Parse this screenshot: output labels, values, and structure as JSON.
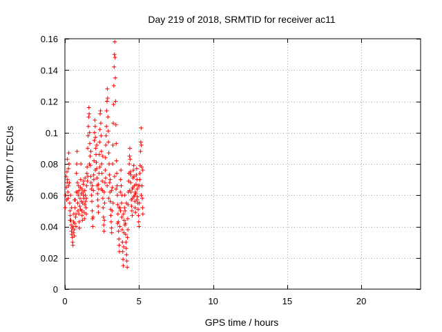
{
  "chart_data": {
    "type": "scatter",
    "title": "Day 219 of 2018, SRMTID for receiver ac11",
    "xlabel": "GPS time / hours",
    "ylabel": "SRMTID / TECUs",
    "xlim": [
      0,
      24
    ],
    "ylim": [
      0,
      0.16
    ],
    "xticks": [
      0,
      5,
      10,
      15,
      20
    ],
    "xtick_labels": [
      "0",
      "5",
      "10",
      "15",
      "20"
    ],
    "yticks": [
      0,
      0.02,
      0.04,
      0.06,
      0.08,
      0.1,
      0.12,
      0.14,
      0.16
    ],
    "ytick_labels": [
      "0",
      "0.02",
      "0.04",
      "0.06",
      "0.08",
      "0.1",
      "0.12",
      "0.14",
      "0.16"
    ],
    "grid": true,
    "marker": "plus",
    "color": "#ff0000",
    "series": [
      {
        "name": "SRMTID",
        "points": [
          [
            0.02,
            0.052
          ],
          [
            0.05,
            0.06
          ],
          [
            0.08,
            0.072
          ],
          [
            0.1,
            0.065
          ],
          [
            0.12,
            0.057
          ],
          [
            0.14,
            0.075
          ],
          [
            0.16,
            0.083
          ],
          [
            0.18,
            0.07
          ],
          [
            0.2,
            0.062
          ],
          [
            0.22,
            0.058
          ],
          [
            0.24,
            0.077
          ],
          [
            0.26,
            0.087
          ],
          [
            0.28,
            0.08
          ],
          [
            0.3,
            0.068
          ],
          [
            0.32,
            0.055
          ],
          [
            0.34,
            0.05
          ],
          [
            0.36,
            0.047
          ],
          [
            0.38,
            0.06
          ],
          [
            0.4,
            0.044
          ],
          [
            0.42,
            0.041
          ],
          [
            0.44,
            0.037
          ],
          [
            0.46,
            0.035
          ],
          [
            0.48,
            0.039
          ],
          [
            0.5,
            0.033
          ],
          [
            0.52,
            0.03
          ],
          [
            0.54,
            0.028
          ],
          [
            0.56,
            0.036
          ],
          [
            0.58,
            0.043
          ],
          [
            0.6,
            0.048
          ],
          [
            0.62,
            0.038
          ],
          [
            0.64,
            0.034
          ],
          [
            0.66,
            0.042
          ],
          [
            0.68,
            0.052
          ],
          [
            0.7,
            0.057
          ],
          [
            0.72,
            0.046
          ],
          [
            0.74,
            0.04
          ],
          [
            0.76,
            0.062
          ],
          [
            0.78,
            0.074
          ],
          [
            0.8,
            0.08
          ],
          [
            0.82,
            0.088
          ],
          [
            0.84,
            0.068
          ],
          [
            0.86,
            0.055
          ],
          [
            0.88,
            0.05
          ],
          [
            0.9,
            0.06
          ],
          [
            0.92,
            0.066
          ],
          [
            0.94,
            0.048
          ],
          [
            0.96,
            0.043
          ],
          [
            0.98,
            0.039
          ],
          [
            1.0,
            0.053
          ],
          [
            1.02,
            0.058
          ],
          [
            1.04,
            0.065
          ],
          [
            1.06,
            0.07
          ],
          [
            1.08,
            0.08
          ],
          [
            1.1,
            0.061
          ],
          [
            1.12,
            0.056
          ],
          [
            1.14,
            0.05
          ],
          [
            1.16,
            0.047
          ],
          [
            1.18,
            0.044
          ],
          [
            1.2,
            0.055
          ],
          [
            1.22,
            0.062
          ],
          [
            1.24,
            0.067
          ],
          [
            1.26,
            0.069
          ],
          [
            1.28,
            0.058
          ],
          [
            1.3,
            0.049
          ],
          [
            1.32,
            0.045
          ],
          [
            1.34,
            0.063
          ],
          [
            1.36,
            0.071
          ],
          [
            1.38,
            0.06
          ],
          [
            1.4,
            0.056
          ],
          [
            1.42,
            0.052
          ],
          [
            1.44,
            0.048
          ],
          [
            1.46,
            0.066
          ],
          [
            1.48,
            0.074
          ],
          [
            1.5,
            0.078
          ],
          [
            1.52,
            0.069
          ],
          [
            1.54,
            0.09
          ],
          [
            1.56,
            0.098
          ],
          [
            1.58,
            0.104
          ],
          [
            1.6,
            0.11
          ],
          [
            1.62,
            0.116
          ],
          [
            1.64,
            0.112
          ],
          [
            1.66,
            0.1
          ],
          [
            1.68,
            0.093
          ],
          [
            1.7,
            0.085
          ],
          [
            1.72,
            0.079
          ],
          [
            1.74,
            0.072
          ],
          [
            1.76,
            0.068
          ],
          [
            1.78,
            0.064
          ],
          [
            1.8,
            0.06
          ],
          [
            1.82,
            0.056
          ],
          [
            1.84,
            0.05
          ],
          [
            1.86,
            0.045
          ],
          [
            1.88,
            0.04
          ],
          [
            1.9,
            0.046
          ],
          [
            1.92,
            0.063
          ],
          [
            1.94,
            0.073
          ],
          [
            1.96,
            0.082
          ],
          [
            1.98,
            0.095
          ],
          [
            2.0,
            0.1
          ],
          [
            2.02,
            0.108
          ],
          [
            2.04,
            0.104
          ],
          [
            2.06,
            0.097
          ],
          [
            2.08,
            0.09
          ],
          [
            2.1,
            0.086
          ],
          [
            2.12,
            0.081
          ],
          [
            2.14,
            0.077
          ],
          [
            2.16,
            0.071
          ],
          [
            2.18,
            0.066
          ],
          [
            2.2,
            0.061
          ],
          [
            2.22,
            0.057
          ],
          [
            2.24,
            0.053
          ],
          [
            2.26,
            0.049
          ],
          [
            2.28,
            0.064
          ],
          [
            2.3,
            0.074
          ],
          [
            2.32,
            0.086
          ],
          [
            2.34,
            0.094
          ],
          [
            2.36,
            0.102
          ],
          [
            2.38,
            0.112
          ],
          [
            2.4,
            0.114
          ],
          [
            2.42,
            0.106
          ],
          [
            2.44,
            0.098
          ],
          [
            2.46,
            0.088
          ],
          [
            2.48,
            0.08
          ],
          [
            2.5,
            0.074
          ],
          [
            2.52,
            0.069
          ],
          [
            2.54,
            0.063
          ],
          [
            2.56,
            0.058
          ],
          [
            2.58,
            0.052
          ],
          [
            2.6,
            0.046
          ],
          [
            2.62,
            0.041
          ],
          [
            2.64,
            0.037
          ],
          [
            2.66,
            0.044
          ],
          [
            2.68,
            0.055
          ],
          [
            2.7,
            0.068
          ],
          [
            2.72,
            0.076
          ],
          [
            2.74,
            0.084
          ],
          [
            2.76,
            0.092
          ],
          [
            2.78,
            0.098
          ],
          [
            2.8,
            0.104
          ],
          [
            2.82,
            0.114
          ],
          [
            2.84,
            0.12
          ],
          [
            2.86,
            0.128
          ],
          [
            2.88,
            0.122
          ],
          [
            2.9,
            0.11
          ],
          [
            2.92,
            0.101
          ],
          [
            2.94,
            0.094
          ],
          [
            2.96,
            0.087
          ],
          [
            2.98,
            0.08
          ],
          [
            3.0,
            0.073
          ],
          [
            3.02,
            0.068
          ],
          [
            3.04,
            0.062
          ],
          [
            3.06,
            0.056
          ],
          [
            3.08,
            0.051
          ],
          [
            3.1,
            0.047
          ],
          [
            3.12,
            0.043
          ],
          [
            3.14,
            0.039
          ],
          [
            3.16,
            0.036
          ],
          [
            3.18,
            0.05
          ],
          [
            3.2,
            0.065
          ],
          [
            3.22,
            0.08
          ],
          [
            3.24,
            0.092
          ],
          [
            3.26,
            0.106
          ],
          [
            3.28,
            0.118
          ],
          [
            3.3,
            0.13
          ],
          [
            3.32,
            0.142
          ],
          [
            3.34,
            0.15
          ],
          [
            3.36,
            0.158
          ],
          [
            3.38,
            0.148
          ],
          [
            3.4,
            0.135
          ],
          [
            3.42,
            0.12
          ],
          [
            3.44,
            0.105
          ],
          [
            3.46,
            0.093
          ],
          [
            3.48,
            0.082
          ],
          [
            3.5,
            0.074
          ],
          [
            3.52,
            0.066
          ],
          [
            3.54,
            0.06
          ],
          [
            3.56,
            0.054
          ],
          [
            3.58,
            0.048
          ],
          [
            3.6,
            0.043
          ],
          [
            3.62,
            0.037
          ],
          [
            3.64,
            0.032
          ],
          [
            3.66,
            0.028
          ],
          [
            3.68,
            0.024
          ],
          [
            3.7,
            0.04
          ],
          [
            3.72,
            0.052
          ],
          [
            3.74,
            0.062
          ],
          [
            3.76,
            0.07
          ],
          [
            3.78,
            0.076
          ],
          [
            3.8,
            0.066
          ],
          [
            3.82,
            0.055
          ],
          [
            3.84,
            0.046
          ],
          [
            3.86,
            0.038
          ],
          [
            3.88,
            0.03
          ],
          [
            3.9,
            0.024
          ],
          [
            3.92,
            0.019
          ],
          [
            3.94,
            0.015
          ],
          [
            3.96,
            0.027
          ],
          [
            3.98,
            0.036
          ],
          [
            4.0,
            0.044
          ],
          [
            4.02,
            0.052
          ],
          [
            4.04,
            0.06
          ],
          [
            4.06,
            0.05
          ],
          [
            4.08,
            0.042
          ],
          [
            4.1,
            0.035
          ],
          [
            4.12,
            0.03
          ],
          [
            4.14,
            0.026
          ],
          [
            4.16,
            0.022
          ],
          [
            4.18,
            0.018
          ],
          [
            4.2,
            0.014
          ],
          [
            4.22,
            0.033
          ],
          [
            4.24,
            0.045
          ],
          [
            4.26,
            0.054
          ],
          [
            4.28,
            0.062
          ],
          [
            4.3,
            0.069
          ],
          [
            4.32,
            0.074
          ],
          [
            4.34,
            0.08
          ],
          [
            4.36,
            0.085
          ],
          [
            4.38,
            0.09
          ],
          [
            4.4,
            0.083
          ],
          [
            4.42,
            0.075
          ],
          [
            4.44,
            0.068
          ],
          [
            4.46,
            0.062
          ],
          [
            4.48,
            0.057
          ],
          [
            4.5,
            0.053
          ],
          [
            4.52,
            0.05
          ],
          [
            4.54,
            0.047
          ],
          [
            4.56,
            0.058
          ],
          [
            4.58,
            0.065
          ],
          [
            4.6,
            0.071
          ],
          [
            4.62,
            0.076
          ],
          [
            4.64,
            0.079
          ],
          [
            4.66,
            0.072
          ],
          [
            4.68,
            0.066
          ],
          [
            4.7,
            0.06
          ],
          [
            4.72,
            0.056
          ],
          [
            4.74,
            0.052
          ],
          [
            4.76,
            0.049
          ],
          [
            4.78,
            0.061
          ],
          [
            4.8,
            0.067
          ],
          [
            4.82,
            0.073
          ],
          [
            4.84,
            0.077
          ],
          [
            4.86,
            0.07
          ],
          [
            4.88,
            0.064
          ],
          [
            4.9,
            0.059
          ],
          [
            4.92,
            0.055
          ],
          [
            4.94,
            0.051
          ],
          [
            4.96,
            0.047
          ],
          [
            4.98,
            0.043
          ],
          [
            5.0,
            0.04
          ],
          [
            5.02,
            0.055
          ],
          [
            5.04,
            0.066
          ],
          [
            5.06,
            0.074
          ],
          [
            5.08,
            0.079
          ],
          [
            5.1,
            0.088
          ],
          [
            5.12,
            0.094
          ],
          [
            5.14,
            0.103
          ],
          [
            5.16,
            0.092
          ],
          [
            5.18,
            0.078
          ],
          [
            5.2,
            0.066
          ],
          [
            5.22,
            0.058
          ],
          [
            5.24,
            0.052
          ],
          [
            5.26,
            0.048
          ],
          [
            0.15,
            0.068
          ],
          [
            0.35,
            0.044
          ],
          [
            0.55,
            0.04
          ],
          [
            0.75,
            0.048
          ],
          [
            0.95,
            0.063
          ],
          [
            1.15,
            0.064
          ],
          [
            1.35,
            0.054
          ],
          [
            1.55,
            0.072
          ],
          [
            1.75,
            0.088
          ],
          [
            1.95,
            0.07
          ],
          [
            2.15,
            0.092
          ],
          [
            2.35,
            0.078
          ],
          [
            2.55,
            0.085
          ],
          [
            2.75,
            0.071
          ],
          [
            2.95,
            0.058
          ],
          [
            3.15,
            0.063
          ],
          [
            3.35,
            0.072
          ],
          [
            3.55,
            0.042
          ],
          [
            3.75,
            0.05
          ],
          [
            3.95,
            0.048
          ],
          [
            4.15,
            0.055
          ],
          [
            4.35,
            0.063
          ],
          [
            4.55,
            0.064
          ],
          [
            4.75,
            0.062
          ],
          [
            4.95,
            0.066
          ],
          [
            5.15,
            0.06
          ],
          [
            0.25,
            0.066
          ],
          [
            0.45,
            0.052
          ],
          [
            0.65,
            0.057
          ],
          [
            0.85,
            0.062
          ],
          [
            1.05,
            0.051
          ],
          [
            1.25,
            0.06
          ],
          [
            1.45,
            0.058
          ],
          [
            1.65,
            0.08
          ],
          [
            1.85,
            0.066
          ],
          [
            2.05,
            0.076
          ],
          [
            2.25,
            0.067
          ],
          [
            2.45,
            0.064
          ],
          [
            2.65,
            0.062
          ],
          [
            2.85,
            0.066
          ],
          [
            3.05,
            0.07
          ],
          [
            3.25,
            0.055
          ],
          [
            3.45,
            0.064
          ],
          [
            3.65,
            0.052
          ],
          [
            3.85,
            0.06
          ],
          [
            4.05,
            0.041
          ],
          [
            4.25,
            0.038
          ],
          [
            4.45,
            0.073
          ],
          [
            4.65,
            0.059
          ],
          [
            4.85,
            0.057
          ],
          [
            5.05,
            0.07
          ],
          [
            5.25,
            0.076
          ]
        ]
      }
    ]
  }
}
